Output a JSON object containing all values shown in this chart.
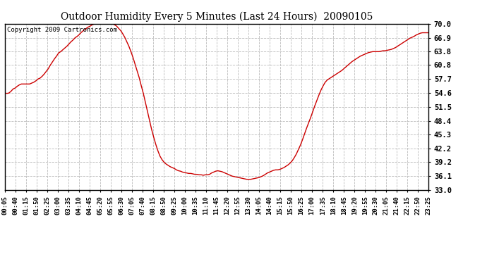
{
  "title": "Outdoor Humidity Every 5 Minutes (Last 24 Hours)  20090105",
  "copyright": "Copyright 2009 Cartronics.com",
  "line_color": "#cc0000",
  "bg_color": "#ffffff",
  "plot_bg_color": "#ffffff",
  "grid_color": "#bbbbbb",
  "ylim": [
    33.0,
    70.0
  ],
  "yticks": [
    33.0,
    36.1,
    39.2,
    42.2,
    45.3,
    48.4,
    51.5,
    54.6,
    57.7,
    60.8,
    63.8,
    66.9,
    70.0
  ],
  "xtick_labels": [
    "00:05",
    "00:40",
    "01:15",
    "01:50",
    "02:25",
    "03:00",
    "03:35",
    "04:10",
    "04:45",
    "05:20",
    "05:55",
    "06:30",
    "07:05",
    "07:40",
    "08:15",
    "08:50",
    "09:25",
    "10:00",
    "10:35",
    "11:10",
    "11:45",
    "12:20",
    "12:55",
    "13:30",
    "14:05",
    "14:40",
    "15:15",
    "15:50",
    "16:25",
    "17:00",
    "17:35",
    "18:10",
    "18:45",
    "19:20",
    "19:55",
    "20:30",
    "21:05",
    "21:40",
    "22:15",
    "22:50",
    "23:25"
  ],
  "humidity_data": [
    54.6,
    54.5,
    54.6,
    55.0,
    55.5,
    55.7,
    56.1,
    56.4,
    56.6,
    56.6,
    56.6,
    56.6,
    56.6,
    56.8,
    57.0,
    57.3,
    57.7,
    57.9,
    58.3,
    58.8,
    59.4,
    60.0,
    60.8,
    61.5,
    62.2,
    62.8,
    63.5,
    63.8,
    64.2,
    64.6,
    65.0,
    65.5,
    66.0,
    66.4,
    66.9,
    67.2,
    67.6,
    68.1,
    68.5,
    68.8,
    69.2,
    69.4,
    69.7,
    69.9,
    70.0,
    70.0,
    70.0,
    70.0,
    70.0,
    70.0,
    70.0,
    70.0,
    70.0,
    69.8,
    69.5,
    69.0,
    68.5,
    67.8,
    67.0,
    66.0,
    65.0,
    63.8,
    62.5,
    61.0,
    59.5,
    58.0,
    56.2,
    54.5,
    52.5,
    50.5,
    48.5,
    46.5,
    44.8,
    43.2,
    41.8,
    40.6,
    39.8,
    39.2,
    38.8,
    38.5,
    38.2,
    38.0,
    37.8,
    37.5,
    37.3,
    37.2,
    37.0,
    36.9,
    36.8,
    36.7,
    36.7,
    36.6,
    36.5,
    36.5,
    36.4,
    36.4,
    36.3,
    36.4,
    36.4,
    36.5,
    36.8,
    37.0,
    37.2,
    37.3,
    37.2,
    37.1,
    36.9,
    36.7,
    36.5,
    36.3,
    36.1,
    36.0,
    35.9,
    35.8,
    35.7,
    35.6,
    35.5,
    35.4,
    35.4,
    35.4,
    35.5,
    35.6,
    35.7,
    35.8,
    36.0,
    36.2,
    36.5,
    36.8,
    37.0,
    37.2,
    37.4,
    37.5,
    37.5,
    37.6,
    37.8,
    38.0,
    38.3,
    38.6,
    39.0,
    39.5,
    40.2,
    41.0,
    42.0,
    43.0,
    44.2,
    45.5,
    46.8,
    48.0,
    49.2,
    50.5,
    51.8,
    53.0,
    54.2,
    55.3,
    56.2,
    57.0,
    57.5,
    57.8,
    58.1,
    58.4,
    58.7,
    59.0,
    59.3,
    59.6,
    60.0,
    60.4,
    60.8,
    61.2,
    61.6,
    61.9,
    62.2,
    62.5,
    62.8,
    63.0,
    63.2,
    63.4,
    63.6,
    63.7,
    63.8,
    63.8,
    63.8,
    63.8,
    63.9,
    64.0,
    64.0,
    64.1,
    64.2,
    64.3,
    64.5,
    64.7,
    65.0,
    65.3,
    65.6,
    65.9,
    66.2,
    66.5,
    66.8,
    67.0,
    67.2,
    67.5,
    67.7,
    67.9,
    68.0,
    68.0,
    68.0,
    68.0
  ]
}
